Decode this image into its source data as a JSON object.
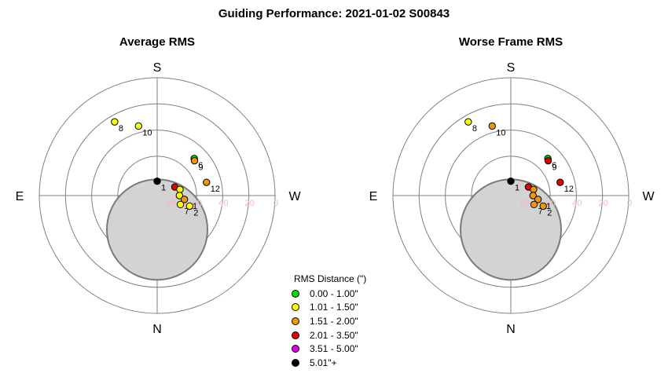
{
  "title": "Guiding Performance: 2021-01-02 S00843",
  "legend": {
    "title": "RMS Distance (\")",
    "items": [
      {
        "label": "0.00 - 1.00\"",
        "color": "#00e000"
      },
      {
        "label": "1.01 - 1.50\"",
        "color": "#ffff00"
      },
      {
        "label": "1.51 - 2.00\"",
        "color": "#f0960a"
      },
      {
        "label": "2.01 - 3.50\"",
        "color": "#e60000"
      },
      {
        "label": "3.51 - 5.00\"",
        "color": "#e600e6"
      },
      {
        "label": "5.01\"+",
        "color": "#000000"
      }
    ]
  },
  "chart_data": [
    {
      "type": "scatter",
      "projection": "polar (azimuth / altitude)",
      "title": "Average RMS",
      "direction_labels": {
        "top": "S",
        "bottom": "N",
        "left": "E",
        "right": "W"
      },
      "altitude_ticks": [
        "80",
        "60",
        "40",
        "20",
        "0"
      ],
      "altitude_range": [
        0,
        90
      ],
      "obstruction": {
        "azimuth_deg": 0,
        "altitude_deg": 64,
        "radius_deg": 24
      },
      "points": [
        {
          "label": "8",
          "azimuth_deg": 150,
          "altitude_deg": 25,
          "color": "#ffff00"
        },
        {
          "label": "10",
          "azimuth_deg": 165,
          "altitude_deg": 35,
          "color": "#ffff00"
        },
        {
          "label": "6",
          "azimuth_deg": 225,
          "altitude_deg": 50,
          "color": "#00e000"
        },
        {
          "label": "9",
          "azimuth_deg": 227,
          "altitude_deg": 51,
          "color": "#f0960a"
        },
        {
          "label": "12",
          "azimuth_deg": 255,
          "altitude_deg": 51,
          "color": "#f0960a"
        },
        {
          "label": "1",
          "azimuth_deg": 180,
          "altitude_deg": 79,
          "color": "#000000"
        },
        {
          "label": "",
          "azimuth_deg": 244,
          "altitude_deg": 75,
          "color": "#e60000"
        },
        {
          "label": "",
          "azimuth_deg": 255,
          "altitude_deg": 72,
          "color": "#ffff00"
        },
        {
          "label": "",
          "azimuth_deg": 270,
          "altitude_deg": 73,
          "color": "#ffff00"
        },
        {
          "label": "11",
          "azimuth_deg": 278,
          "altitude_deg": 69,
          "color": "#f0960a"
        },
        {
          "label": "7",
          "azimuth_deg": 291,
          "altitude_deg": 71,
          "color": "#ffff00"
        },
        {
          "label": "2",
          "azimuth_deg": 288,
          "altitude_deg": 64,
          "color": "#ffff00"
        }
      ]
    },
    {
      "type": "scatter",
      "projection": "polar (azimuth / altitude)",
      "title": "Worse Frame RMS",
      "direction_labels": {
        "top": "S",
        "bottom": "N",
        "left": "E",
        "right": "W"
      },
      "altitude_ticks": [
        "80",
        "60",
        "40",
        "20",
        "0"
      ],
      "altitude_range": [
        0,
        90
      ],
      "obstruction": {
        "azimuth_deg": 0,
        "altitude_deg": 64,
        "radius_deg": 24
      },
      "points": [
        {
          "label": "8",
          "azimuth_deg": 150,
          "altitude_deg": 25,
          "color": "#ffff00"
        },
        {
          "label": "10",
          "azimuth_deg": 165,
          "altitude_deg": 35,
          "color": "#f0960a"
        },
        {
          "label": "6",
          "azimuth_deg": 225,
          "altitude_deg": 50,
          "color": "#00e000"
        },
        {
          "label": "9",
          "azimuth_deg": 227,
          "altitude_deg": 51,
          "color": "#e60000"
        },
        {
          "label": "12",
          "azimuth_deg": 255,
          "altitude_deg": 51,
          "color": "#e60000"
        },
        {
          "label": "1",
          "azimuth_deg": 180,
          "altitude_deg": 79,
          "color": "#000000"
        },
        {
          "label": "",
          "azimuth_deg": 244,
          "altitude_deg": 75,
          "color": "#e60000"
        },
        {
          "label": "",
          "azimuth_deg": 255,
          "altitude_deg": 72,
          "color": "#f0960a"
        },
        {
          "label": "",
          "azimuth_deg": 270,
          "altitude_deg": 73,
          "color": "#f0960a"
        },
        {
          "label": "11",
          "azimuth_deg": 278,
          "altitude_deg": 69,
          "color": "#f0960a"
        },
        {
          "label": "7",
          "azimuth_deg": 291,
          "altitude_deg": 71,
          "color": "#f0960a"
        },
        {
          "label": "2",
          "azimuth_deg": 288,
          "altitude_deg": 64,
          "color": "#f0960a"
        }
      ]
    }
  ]
}
